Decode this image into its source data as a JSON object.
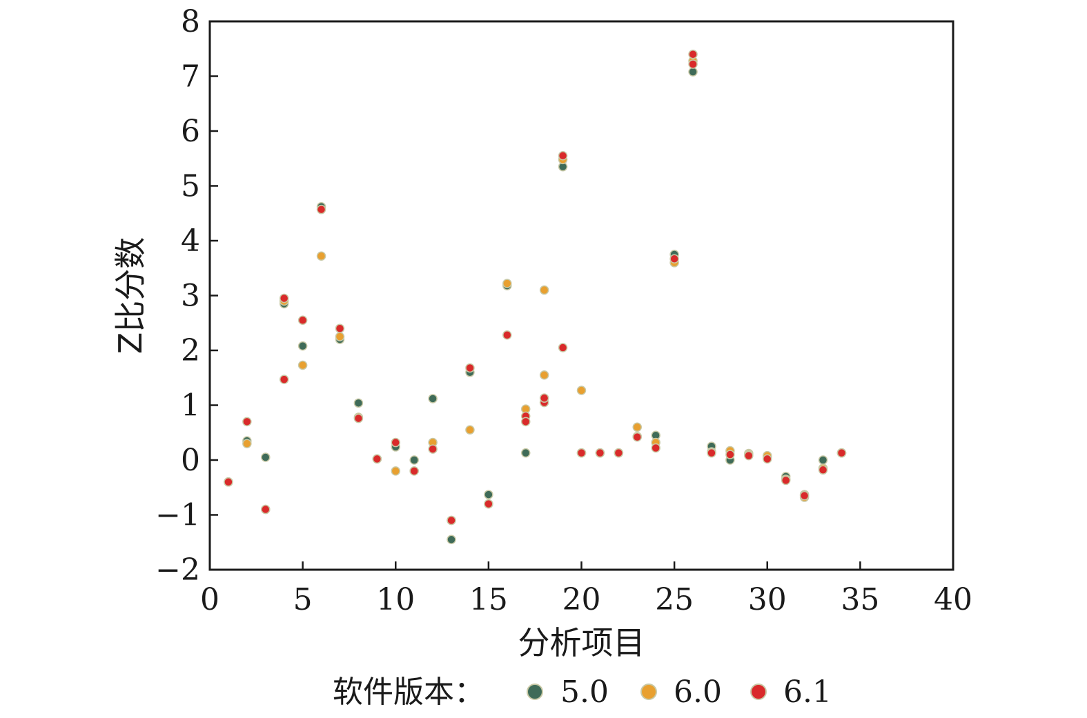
{
  "chart_data": {
    "type": "scatter",
    "title": "",
    "xlabel": "分析项目",
    "ylabel": "Z比分数",
    "xlim": [
      0,
      40
    ],
    "ylim": [
      -2,
      8
    ],
    "xticks": [
      0,
      5,
      10,
      15,
      20,
      25,
      30,
      35,
      40
    ],
    "yticks": [
      -2,
      -1,
      0,
      1,
      2,
      3,
      4,
      5,
      6,
      7,
      8
    ],
    "ytick_labels": [
      "−2",
      "−1",
      "0",
      "1",
      "2",
      "3",
      "4",
      "5",
      "6",
      "7",
      "8"
    ],
    "grid": false,
    "legend": {
      "title": "软件版本：",
      "placement": "bottom",
      "labels": [
        "5.0",
        "6.0",
        "6.1"
      ]
    },
    "series": [
      {
        "name": "5.0",
        "color": "#3f6b58",
        "x": [
          1,
          2,
          3,
          4,
          5,
          6,
          7,
          8,
          9,
          10,
          11,
          12,
          13,
          14,
          15,
          16,
          17,
          18,
          19,
          20,
          21,
          22,
          23,
          24,
          25,
          26,
          27,
          28,
          29,
          30,
          31,
          32,
          33,
          34
        ],
        "y": [
          -0.4,
          0.35,
          0.05,
          2.85,
          2.08,
          4.62,
          2.2,
          1.04,
          0.02,
          0.24,
          0.0,
          1.12,
          -1.45,
          1.6,
          -0.63,
          3.18,
          0.13,
          1.05,
          5.35,
          0.13,
          0.13,
          0.13,
          0.43,
          0.45,
          3.75,
          7.08,
          0.25,
          0.0,
          0.12,
          0.05,
          -0.3,
          -0.63,
          0.0,
          0.13
        ]
      },
      {
        "name": "6.0",
        "color": "#e8a030",
        "x": [
          1,
          2,
          3,
          4,
          5,
          6,
          7,
          8,
          9,
          10,
          11,
          12,
          13,
          14,
          15,
          16,
          17,
          18,
          18,
          19,
          20,
          21,
          22,
          23,
          24,
          25,
          26,
          27,
          28,
          29,
          30,
          31,
          32,
          33,
          34
        ],
        "y": [
          -0.4,
          0.3,
          -0.9,
          2.9,
          1.73,
          3.72,
          2.25,
          0.78,
          0.02,
          -0.2,
          -0.2,
          0.32,
          -1.1,
          0.55,
          -0.8,
          3.22,
          0.93,
          3.1,
          1.55,
          5.48,
          1.27,
          0.13,
          0.13,
          0.6,
          0.32,
          3.6,
          7.28,
          0.15,
          0.17,
          0.1,
          0.08,
          -0.35,
          -0.68,
          -0.15,
          0.13
        ]
      },
      {
        "name": "6.1",
        "color": "#d92a2a",
        "x": [
          1,
          2,
          3,
          4,
          4,
          5,
          6,
          7,
          8,
          9,
          10,
          11,
          12,
          13,
          14,
          15,
          16,
          17,
          17,
          18,
          18,
          19,
          19,
          20,
          21,
          22,
          23,
          24,
          25,
          26,
          26,
          27,
          28,
          29,
          30,
          31,
          32,
          33,
          34
        ],
        "y": [
          -0.4,
          0.7,
          -0.9,
          2.95,
          1.47,
          2.55,
          4.57,
          2.4,
          0.76,
          0.02,
          0.32,
          -0.2,
          0.2,
          -1.1,
          1.68,
          -0.8,
          2.28,
          0.8,
          0.7,
          1.05,
          1.13,
          5.55,
          2.05,
          0.13,
          0.13,
          0.13,
          0.42,
          0.22,
          3.67,
          7.4,
          7.22,
          0.13,
          0.1,
          0.08,
          0.02,
          -0.37,
          -0.65,
          -0.18,
          0.13
        ]
      }
    ]
  }
}
